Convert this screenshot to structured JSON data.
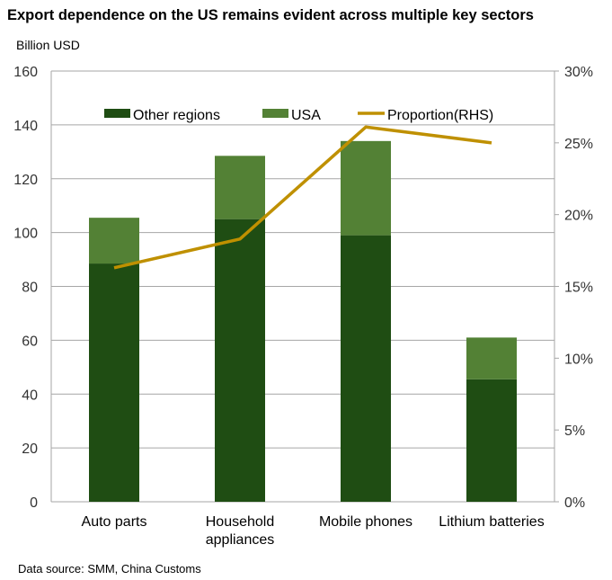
{
  "title": "Export dependence on the US remains evident across multiple key sectors",
  "unit_label": "Billion USD",
  "source": "Data source: SMM, China Customs",
  "colors": {
    "other": "#1f4d13",
    "usa": "#538135",
    "proportion": "#bf9000",
    "grid": "#a6a6a6"
  },
  "chart_data": {
    "type": "bar",
    "stacked": true,
    "categories": [
      "Auto parts",
      "Household appliances",
      "Mobile phones",
      "Lithium batteries"
    ],
    "category_label_lines": [
      [
        "Auto parts"
      ],
      [
        "Household",
        "appliances"
      ],
      [
        "Mobile phones"
      ],
      [
        "Lithium batteries"
      ]
    ],
    "series": [
      {
        "name": "Other regions",
        "values": [
          88.5,
          105,
          99,
          45.5
        ]
      },
      {
        "name": "USA",
        "values": [
          17,
          23.5,
          35,
          15.5
        ]
      }
    ],
    "line_series": {
      "name": "Proportion(RHS)",
      "values": [
        16.3,
        18.3,
        26.1,
        25.0
      ],
      "axis": "right"
    },
    "ylim": [
      0,
      160
    ],
    "yticks": [
      0,
      20,
      40,
      60,
      80,
      100,
      120,
      140,
      160
    ],
    "y2lim": [
      0,
      30
    ],
    "y2ticks": [
      "0%",
      "5%",
      "10%",
      "15%",
      "20%",
      "25%",
      "30%"
    ],
    "grid": true,
    "legend_position": "top"
  }
}
